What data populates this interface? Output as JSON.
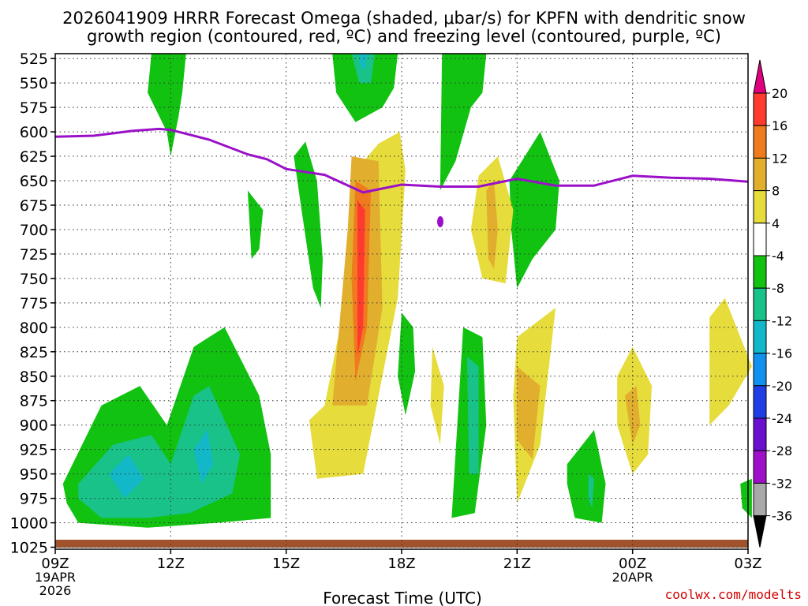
{
  "chart_data": {
    "type": "heatmap",
    "title_line1": "2026041909 HRRR Forecast Omega (shaded, μbar/s) for KPFN with dendritic snow",
    "title_line2": "growth region (contoured, red, ºC) and freezing level (contoured, purple, ºC)",
    "xlabel": "Forecast Time (UTC)",
    "watermark": "coolwx.com/modelts",
    "x_ticks": [
      {
        "hour": 0,
        "label": "09Z",
        "sub1": "19APR",
        "sub2": "2026"
      },
      {
        "hour": 3,
        "label": "12Z"
      },
      {
        "hour": 6,
        "label": "15Z"
      },
      {
        "hour": 9,
        "label": "18Z"
      },
      {
        "hour": 12,
        "label": "21Z"
      },
      {
        "hour": 15,
        "label": "00Z",
        "sub1": "20APR"
      },
      {
        "hour": 18,
        "label": "03Z"
      }
    ],
    "x_range_hours": [
      0,
      18
    ],
    "y_range_hpa": [
      520,
      1027
    ],
    "y_ticks": [
      525,
      550,
      575,
      600,
      625,
      650,
      675,
      700,
      725,
      750,
      775,
      800,
      825,
      850,
      875,
      900,
      925,
      950,
      975,
      1000,
      1025
    ],
    "colorbar_levels": [
      20,
      16,
      12,
      8,
      4,
      -4,
      -8,
      -12,
      -16,
      -20,
      -24,
      -28,
      -32,
      -36
    ],
    "colorbar_colors": [
      "#e0007f",
      "#ff3b2f",
      "#f07a1e",
      "#e2ae2e",
      "#e6dc3c",
      "#ffffff",
      "#11c211",
      "#18c288",
      "#12b8c8",
      "#1190ee",
      "#1f3ee6",
      "#6a0fd0",
      "#a00fc8",
      "#a8a8a8",
      "#000000"
    ],
    "freezing_level": {
      "color": "#9a10c8",
      "hours": [
        0,
        1,
        2,
        2.7,
        3,
        4,
        5,
        5.5,
        6,
        7,
        8,
        9,
        10,
        11,
        12,
        13,
        14,
        15,
        16,
        17,
        18
      ],
      "hpa": [
        605,
        604,
        599,
        597,
        598,
        608,
        623,
        628,
        638,
        644,
        662,
        654,
        656,
        656,
        648,
        655,
        655,
        645,
        647,
        648,
        651
      ]
    },
    "omega_regions": [
      {
        "color": "#11c211",
        "hours": [
          2.5,
          3.4,
          3.3,
          3.2,
          3.0,
          2.9,
          2.4
        ],
        "hpa": [
          520,
          520,
          560,
          585,
          625,
          600,
          560
        ]
      },
      {
        "color": "#11c211",
        "hours": [
          7.2,
          8.9,
          8.8,
          8.5,
          7.8,
          7.3
        ],
        "hpa": [
          520,
          520,
          555,
          575,
          590,
          560
        ]
      },
      {
        "color": "#18c288",
        "hours": [
          7.7,
          8.3,
          8.2,
          7.9
        ],
        "hpa": [
          520,
          520,
          550,
          550
        ]
      },
      {
        "color": "#12b8c8",
        "hours": [
          7.9,
          8.1,
          8.05,
          7.95
        ],
        "hpa": [
          520,
          520,
          535,
          535
        ]
      },
      {
        "color": "#11c211",
        "hours": [
          10.05,
          11.2,
          11.1,
          10.8,
          10.4,
          10.0
        ],
        "hpa": [
          520,
          520,
          560,
          575,
          630,
          660
        ]
      },
      {
        "color": "#e6dc3c",
        "hours": [
          8.4,
          8.95,
          9.1,
          8.9,
          8.0,
          6.8,
          6.6,
          7.0,
          7.5,
          7.8
        ],
        "hpa": [
          612,
          600,
          640,
          770,
          950,
          955,
          895,
          880,
          780,
          640
        ]
      },
      {
        "color": "#e2ae2e",
        "hours": [
          7.7,
          8.4,
          8.5,
          8.1,
          7.2,
          7.6
        ],
        "hpa": [
          625,
          630,
          780,
          880,
          880,
          700
        ]
      },
      {
        "color": "#f07a1e",
        "hours": [
          7.8,
          8.2,
          8.1,
          7.8,
          7.7
        ],
        "hpa": [
          650,
          660,
          800,
          855,
          750
        ]
      },
      {
        "color": "#ff3b2f",
        "hours": [
          7.85,
          8.05,
          8.0,
          7.85
        ],
        "hpa": [
          670,
          680,
          800,
          830
        ]
      },
      {
        "color": "#11c211",
        "hours": [
          6.2,
          6.5,
          6.8,
          6.95,
          6.9,
          6.7,
          6.4
        ],
        "hpa": [
          625,
          610,
          650,
          730,
          780,
          760,
          680
        ]
      },
      {
        "color": "#11c211",
        "hours": [
          11.8,
          12.6,
          13.1,
          13.0,
          12.4,
          12.0,
          11.85
        ],
        "hpa": [
          650,
          600,
          650,
          700,
          730,
          760,
          700
        ]
      },
      {
        "color": "#e6dc3c",
        "hours": [
          11.0,
          11.5,
          11.9,
          11.7,
          11.1,
          10.8
        ],
        "hpa": [
          645,
          625,
          680,
          755,
          750,
          700
        ]
      },
      {
        "color": "#e2ae2e",
        "hours": [
          11.2,
          11.4,
          11.5,
          11.4,
          11.25
        ],
        "hpa": [
          660,
          650,
          700,
          740,
          730
        ]
      },
      {
        "color": "#11c211",
        "hours": [
          5.0,
          5.4,
          5.3,
          5.1
        ],
        "hpa": [
          660,
          680,
          720,
          730
        ]
      },
      {
        "color": "#11c211",
        "hours": [
          9.0,
          9.3,
          9.35,
          9.1,
          8.9
        ],
        "hpa": [
          785,
          800,
          845,
          890,
          850
        ]
      },
      {
        "color": "#e6dc3c",
        "hours": [
          9.8,
          10.1,
          10.0,
          9.75
        ],
        "hpa": [
          820,
          860,
          920,
          880
        ]
      },
      {
        "color": "#11c211",
        "hours": [
          10.6,
          11.1,
          11.2,
          10.9,
          10.3
        ],
        "hpa": [
          800,
          810,
          900,
          990,
          995
        ]
      },
      {
        "color": "#18c288",
        "hours": [
          10.7,
          11.0,
          11.0,
          10.75
        ],
        "hpa": [
          830,
          840,
          950,
          950
        ]
      },
      {
        "color": "#e6dc3c",
        "hours": [
          12.0,
          13.0,
          12.6,
          12.0,
          11.9
        ],
        "hpa": [
          810,
          780,
          920,
          980,
          870
        ]
      },
      {
        "color": "#e2ae2e",
        "hours": [
          12.0,
          12.6,
          12.4,
          12.0
        ],
        "hpa": [
          840,
          860,
          935,
          915
        ]
      },
      {
        "color": "#11c211",
        "hours": [
          13.3,
          14.0,
          14.3,
          14.2,
          13.5,
          13.3
        ],
        "hpa": [
          940,
          905,
          960,
          1000,
          995,
          960
        ]
      },
      {
        "color": "#18c288",
        "hours": [
          13.85,
          14.0,
          13.95,
          13.85
        ],
        "hpa": [
          950,
          955,
          985,
          975
        ]
      },
      {
        "color": "#e6dc3c",
        "hours": [
          14.6,
          15.0,
          15.5,
          15.4,
          15.0,
          14.6
        ],
        "hpa": [
          850,
          820,
          860,
          930,
          950,
          900
        ]
      },
      {
        "color": "#e2ae2e",
        "hours": [
          14.8,
          15.1,
          15.2,
          15.0
        ],
        "hpa": [
          870,
          860,
          900,
          920
        ]
      },
      {
        "color": "#e6dc3c",
        "hours": [
          17.0,
          17.4,
          18.0,
          18.1,
          17.5,
          17.0
        ],
        "hpa": [
          790,
          770,
          830,
          840,
          880,
          900
        ]
      },
      {
        "color": "#11c211",
        "hours": [
          17.8,
          18.1,
          18.1,
          17.85
        ],
        "hpa": [
          960,
          955,
          995,
          985
        ]
      },
      {
        "color": "#11c211",
        "hours": [
          0.2,
          1.2,
          2.2,
          2.9,
          3.6,
          4.4,
          5.3,
          5.6,
          5.6,
          4.2,
          2.4,
          0.6,
          0.3,
          0.2
        ],
        "hpa": [
          960,
          880,
          860,
          900,
          820,
          800,
          870,
          930,
          995,
          1000,
          1005,
          1000,
          980,
          960
        ]
      },
      {
        "color": "#18c288",
        "hours": [
          0.6,
          1.5,
          2.5,
          3.0,
          3.6,
          4.0,
          4.8,
          4.6,
          3.5,
          2.4,
          1.2,
          0.6
        ],
        "hpa": [
          960,
          920,
          910,
          940,
          870,
          860,
          930,
          970,
          990,
          995,
          995,
          975
        ]
      },
      {
        "color": "#12b8c8",
        "hours": [
          1.4,
          1.9,
          2.3,
          1.8
        ],
        "hpa": [
          950,
          930,
          955,
          975
        ]
      },
      {
        "color": "#12b8c8",
        "hours": [
          3.6,
          3.95,
          4.1,
          3.8
        ],
        "hpa": [
          925,
          905,
          940,
          960
        ]
      }
    ]
  }
}
